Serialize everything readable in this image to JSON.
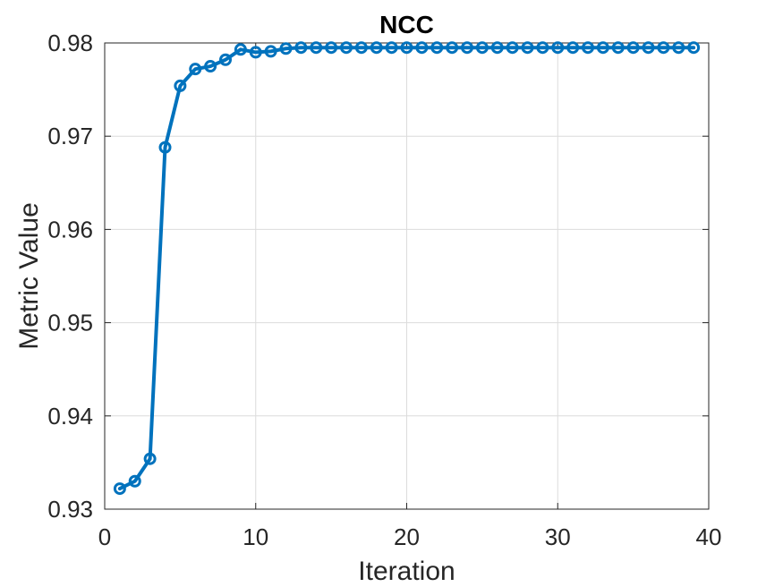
{
  "chart_data": {
    "type": "line",
    "title": "NCC",
    "xlabel": "Iteration",
    "ylabel": "Metric Value",
    "xlim": [
      0,
      40
    ],
    "ylim": [
      0.93,
      0.98
    ],
    "xticks": [
      0,
      10,
      20,
      30,
      40
    ],
    "xtick_labels": [
      "0",
      "10",
      "20",
      "30",
      "40"
    ],
    "yticks": [
      0.93,
      0.94,
      0.95,
      0.96,
      0.97,
      0.98
    ],
    "ytick_labels": [
      "0.93",
      "0.94",
      "0.95",
      "0.96",
      "0.97",
      "0.98"
    ],
    "grid": true,
    "marker": "circle",
    "series": [
      {
        "color": "#0072BD",
        "x": [
          1,
          2,
          3,
          4,
          5,
          6,
          7,
          8,
          9,
          10,
          11,
          12,
          13,
          14,
          15,
          16,
          17,
          18,
          19,
          20,
          21,
          22,
          23,
          24,
          25,
          26,
          27,
          28,
          29,
          30,
          31,
          32,
          33,
          34,
          35,
          36,
          37,
          38,
          39
        ],
        "y": [
          0.9322,
          0.933,
          0.9354,
          0.9688,
          0.9754,
          0.9772,
          0.9775,
          0.9782,
          0.9793,
          0.979,
          0.9791,
          0.9794,
          0.9795,
          0.9795,
          0.9795,
          0.9795,
          0.9795,
          0.9795,
          0.9795,
          0.9795,
          0.9795,
          0.9795,
          0.9795,
          0.9795,
          0.9795,
          0.9795,
          0.9795,
          0.9795,
          0.9795,
          0.9795,
          0.9795,
          0.9795,
          0.9795,
          0.9795,
          0.9795,
          0.9795,
          0.9795,
          0.9795,
          0.9795
        ]
      }
    ]
  }
}
